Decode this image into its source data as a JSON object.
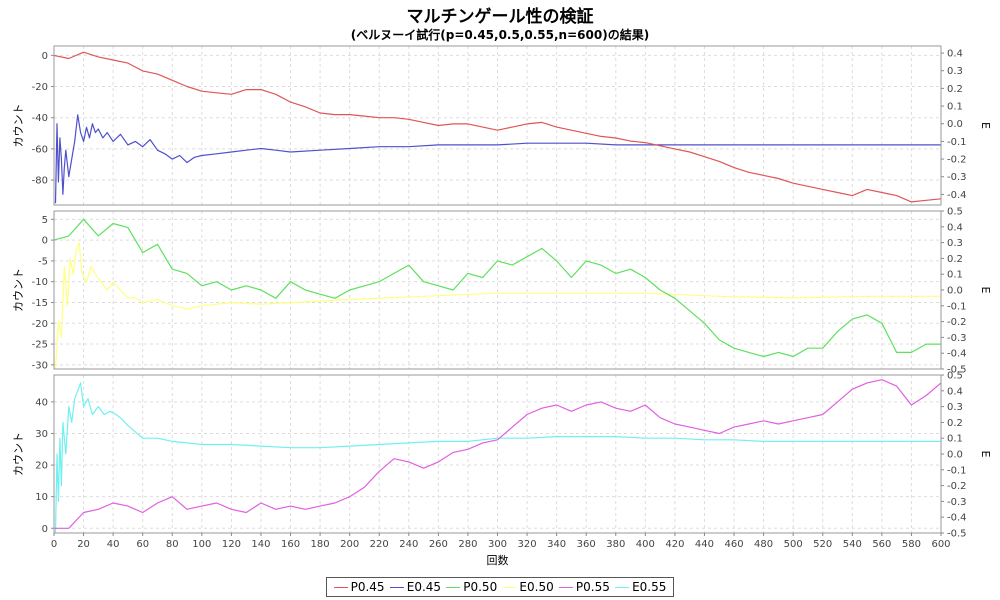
{
  "title": "マルチンゲール性の検証",
  "subtitle": "(ベルヌーイ試行(p=0.45,0.5,0.55,n=600)の結果)",
  "chart_data": {
    "type": "line",
    "xlabel": "回数",
    "xlim": [
      0,
      600
    ],
    "xticks": [
      0,
      20,
      40,
      60,
      80,
      100,
      120,
      140,
      160,
      180,
      200,
      220,
      240,
      260,
      280,
      300,
      320,
      340,
      360,
      380,
      400,
      420,
      440,
      460,
      480,
      500,
      520,
      540,
      560,
      580,
      600
    ],
    "grid": true,
    "legend_position": "bottom",
    "panels": [
      {
        "ylabel_left": "カウント",
        "ylabel_right": "E",
        "ylim_left": [
          -96,
          6
        ],
        "yticks_left": [
          0,
          -20,
          -40,
          -60,
          -80
        ],
        "ylim_right": [
          -0.46,
          0.44
        ],
        "yticks_right": [
          "0.4",
          "0.3",
          "0.2",
          "0.1",
          "0.0",
          "-0.1",
          "-0.2",
          "-0.3",
          "-0.4"
        ],
        "count_series": {
          "name": "P0.45",
          "color": "#e05555",
          "x": [
            0,
            10,
            20,
            30,
            40,
            50,
            60,
            70,
            80,
            90,
            100,
            110,
            120,
            130,
            140,
            150,
            160,
            170,
            180,
            190,
            200,
            210,
            220,
            230,
            240,
            250,
            260,
            270,
            280,
            290,
            300,
            310,
            320,
            330,
            340,
            350,
            360,
            370,
            380,
            390,
            400,
            410,
            420,
            430,
            440,
            450,
            460,
            470,
            480,
            490,
            500,
            510,
            520,
            530,
            540,
            550,
            560,
            570,
            580,
            590,
            600
          ],
          "values": [
            0,
            -2,
            2,
            -1,
            -3,
            -5,
            -10,
            -12,
            -16,
            -20,
            -23,
            -24,
            -25,
            -22,
            -22,
            -25,
            -30,
            -33,
            -37,
            -38,
            -38,
            -39,
            -40,
            -40,
            -41,
            -43,
            -45,
            -44,
            -44,
            -46,
            -48,
            -46,
            -44,
            -43,
            -46,
            -48,
            -50,
            -52,
            -53,
            -55,
            -56,
            -58,
            -60,
            -62,
            -65,
            -68,
            -72,
            -75,
            -77,
            -79,
            -82,
            -84,
            -86,
            -88,
            -90,
            -86,
            -88,
            -90,
            -94,
            -93,
            -92
          ]
        },
        "ratio_series": {
          "name": "E0.45",
          "color": "#5050cc",
          "x": [
            1,
            2,
            3,
            4,
            5,
            6,
            7,
            8,
            10,
            12,
            14,
            16,
            18,
            20,
            22,
            24,
            26,
            28,
            30,
            33,
            36,
            40,
            45,
            50,
            55,
            60,
            65,
            70,
            75,
            80,
            85,
            90,
            95,
            100,
            110,
            120,
            130,
            140,
            150,
            160,
            180,
            200,
            220,
            240,
            260,
            280,
            300,
            320,
            340,
            360,
            380,
            400,
            420,
            440,
            460,
            480,
            500,
            520,
            540,
            560,
            580,
            600
          ],
          "values": [
            -0.45,
            0.0,
            -0.33,
            -0.08,
            -0.2,
            -0.4,
            -0.25,
            -0.15,
            -0.3,
            -0.2,
            -0.1,
            0.05,
            -0.05,
            -0.1,
            -0.02,
            -0.08,
            0.0,
            -0.05,
            -0.03,
            -0.08,
            -0.05,
            -0.1,
            -0.06,
            -0.12,
            -0.1,
            -0.13,
            -0.09,
            -0.15,
            -0.17,
            -0.2,
            -0.18,
            -0.22,
            -0.19,
            -0.18,
            -0.17,
            -0.16,
            -0.15,
            -0.14,
            -0.15,
            -0.16,
            -0.15,
            -0.14,
            -0.13,
            -0.13,
            -0.12,
            -0.12,
            -0.12,
            -0.11,
            -0.11,
            -0.11,
            -0.12,
            -0.12,
            -0.12,
            -0.12,
            -0.12,
            -0.12,
            -0.12,
            -0.12,
            -0.12,
            -0.12,
            -0.12,
            -0.12
          ]
        }
      },
      {
        "ylabel_left": "カウント",
        "ylabel_right": "E",
        "ylim_left": [
          -31,
          7
        ],
        "yticks_left": [
          5,
          0,
          -5,
          -10,
          -15,
          -20,
          -25,
          -30
        ],
        "ylim_right": [
          -0.5,
          0.5
        ],
        "yticks_right": [
          "0.5",
          "0.4",
          "0.3",
          "0.2",
          "0.1",
          "0.0",
          "-0.1",
          "-0.2",
          "-0.3",
          "-0.4",
          "-0.5"
        ],
        "count_series": {
          "name": "P0.50",
          "color": "#5ee05e",
          "x": [
            0,
            10,
            20,
            30,
            40,
            50,
            60,
            70,
            80,
            90,
            100,
            110,
            120,
            130,
            140,
            150,
            160,
            170,
            180,
            190,
            200,
            210,
            220,
            230,
            240,
            250,
            260,
            270,
            280,
            290,
            300,
            310,
            320,
            330,
            340,
            350,
            360,
            370,
            380,
            390,
            400,
            410,
            420,
            430,
            440,
            450,
            460,
            470,
            480,
            490,
            500,
            510,
            520,
            530,
            540,
            550,
            560,
            570,
            580,
            590,
            600
          ],
          "values": [
            0,
            1,
            5,
            1,
            4,
            3,
            -3,
            -1,
            -7,
            -8,
            -11,
            -10,
            -12,
            -11,
            -12,
            -14,
            -10,
            -12,
            -13,
            -14,
            -12,
            -11,
            -10,
            -8,
            -6,
            -10,
            -11,
            -12,
            -8,
            -9,
            -5,
            -6,
            -4,
            -2,
            -5,
            -9,
            -5,
            -6,
            -8,
            -7,
            -9,
            -12,
            -14,
            -17,
            -20,
            -24,
            -26,
            -27,
            -28,
            -27,
            -28,
            -26,
            -26,
            -22,
            -19,
            -18,
            -20,
            -27,
            -27,
            -25,
            -25
          ]
        },
        "ratio_series": {
          "name": "E0.50",
          "color": "#ffff80",
          "x": [
            1,
            3,
            5,
            7,
            9,
            11,
            13,
            15,
            17,
            19,
            22,
            25,
            28,
            32,
            36,
            40,
            45,
            50,
            55,
            60,
            70,
            80,
            90,
            100,
            120,
            140,
            160,
            180,
            200,
            250,
            300,
            350,
            400,
            450,
            500,
            550,
            600
          ],
          "values": [
            -0.5,
            -0.2,
            -0.3,
            0.15,
            -0.1,
            0.2,
            0.1,
            0.25,
            0.3,
            0.1,
            0.05,
            0.15,
            0.1,
            0.05,
            0.0,
            0.05,
            0.0,
            -0.05,
            -0.05,
            -0.08,
            -0.06,
            -0.1,
            -0.12,
            -0.1,
            -0.08,
            -0.09,
            -0.08,
            -0.07,
            -0.06,
            -0.04,
            -0.02,
            -0.02,
            -0.02,
            -0.04,
            -0.05,
            -0.04,
            -0.04
          ]
        }
      },
      {
        "ylabel_left": "カウント",
        "ylabel_right": "E",
        "ylim_left": [
          -1.5,
          48.5
        ],
        "yticks_left": [
          40,
          30,
          20,
          10,
          0
        ],
        "ylim_right": [
          -0.5,
          0.5
        ],
        "yticks_right": [
          "0.5",
          "0.4",
          "0.3",
          "0.2",
          "0.1",
          "0.0",
          "-0.1",
          "-0.2",
          "-0.3",
          "-0.4",
          "-0.5"
        ],
        "count_series": {
          "name": "P0.55",
          "color": "#e060e0",
          "x": [
            0,
            10,
            20,
            30,
            40,
            50,
            60,
            70,
            80,
            90,
            100,
            110,
            120,
            130,
            140,
            150,
            160,
            170,
            180,
            190,
            200,
            210,
            220,
            230,
            240,
            250,
            260,
            270,
            280,
            290,
            300,
            310,
            320,
            330,
            340,
            350,
            360,
            370,
            380,
            390,
            400,
            410,
            420,
            430,
            440,
            450,
            460,
            470,
            480,
            490,
            500,
            510,
            520,
            530,
            540,
            550,
            560,
            570,
            580,
            590,
            600
          ],
          "values": [
            0,
            0,
            5,
            6,
            8,
            7,
            5,
            8,
            10,
            6,
            7,
            8,
            6,
            5,
            8,
            6,
            7,
            6,
            7,
            8,
            10,
            13,
            18,
            22,
            21,
            19,
            21,
            24,
            25,
            27,
            28,
            32,
            36,
            38,
            39,
            37,
            39,
            40,
            38,
            37,
            39,
            35,
            33,
            32,
            31,
            30,
            32,
            33,
            34,
            33,
            34,
            35,
            36,
            40,
            44,
            46,
            47,
            45,
            39,
            42,
            46
          ]
        },
        "ratio_series": {
          "name": "E0.55",
          "color": "#70f0f0",
          "x": [
            1,
            2,
            3,
            4,
            5,
            6,
            8,
            10,
            12,
            14,
            16,
            18,
            20,
            23,
            26,
            30,
            34,
            38,
            42,
            46,
            50,
            55,
            60,
            70,
            80,
            90,
            100,
            120,
            140,
            160,
            180,
            200,
            220,
            240,
            260,
            280,
            300,
            320,
            340,
            360,
            380,
            400,
            420,
            440,
            460,
            480,
            500,
            520,
            540,
            560,
            580,
            600
          ],
          "values": [
            -0.5,
            0.0,
            -0.3,
            0.1,
            -0.2,
            0.2,
            0.0,
            0.3,
            0.2,
            0.35,
            0.4,
            0.45,
            0.3,
            0.35,
            0.25,
            0.3,
            0.25,
            0.27,
            0.25,
            0.22,
            0.18,
            0.14,
            0.1,
            0.1,
            0.08,
            0.07,
            0.06,
            0.06,
            0.05,
            0.04,
            0.04,
            0.05,
            0.06,
            0.07,
            0.08,
            0.08,
            0.1,
            0.1,
            0.11,
            0.11,
            0.11,
            0.1,
            0.1,
            0.09,
            0.09,
            0.08,
            0.08,
            0.08,
            0.08,
            0.08,
            0.08,
            0.08
          ]
        }
      }
    ]
  },
  "legend": [
    {
      "label": "P0.45",
      "color": "#e05555"
    },
    {
      "label": "E0.45",
      "color": "#5050cc"
    },
    {
      "label": "P0.50",
      "color": "#5ee05e"
    },
    {
      "label": "E0.50",
      "color": "#ffff80"
    },
    {
      "label": "P0.55",
      "color": "#e060e0"
    },
    {
      "label": "E0.55",
      "color": "#70f0f0"
    }
  ]
}
